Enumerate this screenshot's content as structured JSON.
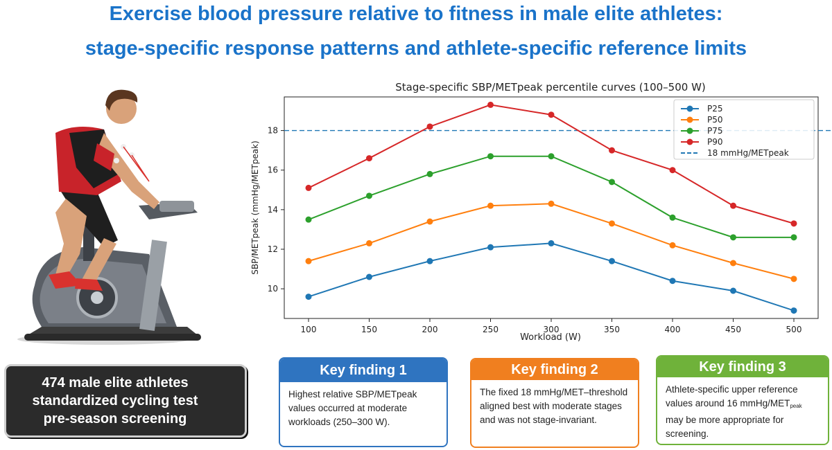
{
  "header": {
    "title_line1": "Exercise blood pressure relative to fitness in male elite athletes:",
    "title_line2": "stage-specific response patterns and athlete-specific reference limits"
  },
  "stats_box": {
    "lines": [
      "474 male elite athletes",
      "standardized cycling test",
      "pre-season screening"
    ]
  },
  "findings": [
    {
      "title": "Key finding 1",
      "color": "#2f74c0",
      "text": "Highest relative SBP/METpeak values occurred at moderate workloads (250–300 W)."
    },
    {
      "title": "Key finding 2",
      "color": "#f07f1f",
      "text": "The fixed 18 mmHg/MET–threshold aligned best with moderate stages and was not stage-invariant."
    },
    {
      "title": "Key finding 3",
      "color": "#6fb23a",
      "text_before": "Athlete-specific upper reference values around 16 mmHg/MET",
      "text_sub": "peak",
      "text_after": " may be more appropriate for screening."
    }
  ],
  "chart_data": {
    "type": "line",
    "title": "Stage-specific SBP/METpeak percentile curves (100–500 W)",
    "xlabel": "Workload (W)",
    "ylabel": "SBP/METpeak (mmHg/METpeak)",
    "x": [
      100,
      150,
      200,
      250,
      300,
      350,
      400,
      450,
      500
    ],
    "xlim": [
      80,
      520
    ],
    "ylim": [
      8.5,
      19.7
    ],
    "xticks": [
      100,
      150,
      200,
      250,
      300,
      350,
      400,
      450,
      500
    ],
    "yticks": [
      10,
      12,
      14,
      16,
      18
    ],
    "grid": false,
    "legend_position": "top-right",
    "series": [
      {
        "name": "P25",
        "color": "#1f77b4",
        "values": [
          9.6,
          10.6,
          11.4,
          12.1,
          12.3,
          11.4,
          10.4,
          9.9,
          8.9
        ]
      },
      {
        "name": "P50",
        "color": "#ff7f0e",
        "values": [
          11.4,
          12.3,
          13.4,
          14.2,
          14.3,
          13.3,
          12.2,
          11.3,
          10.5
        ]
      },
      {
        "name": "P75",
        "color": "#2ca02c",
        "values": [
          13.5,
          14.7,
          15.8,
          16.7,
          16.7,
          15.4,
          13.6,
          12.6,
          12.6
        ]
      },
      {
        "name": "P90",
        "color": "#d62728",
        "values": [
          15.1,
          16.6,
          18.2,
          19.3,
          18.8,
          17.0,
          16.0,
          14.2,
          13.3
        ]
      }
    ],
    "reference_line": {
      "name": "18 mmHg/METpeak",
      "y": 18,
      "color": "#1f77b4",
      "style": "dashed"
    }
  }
}
